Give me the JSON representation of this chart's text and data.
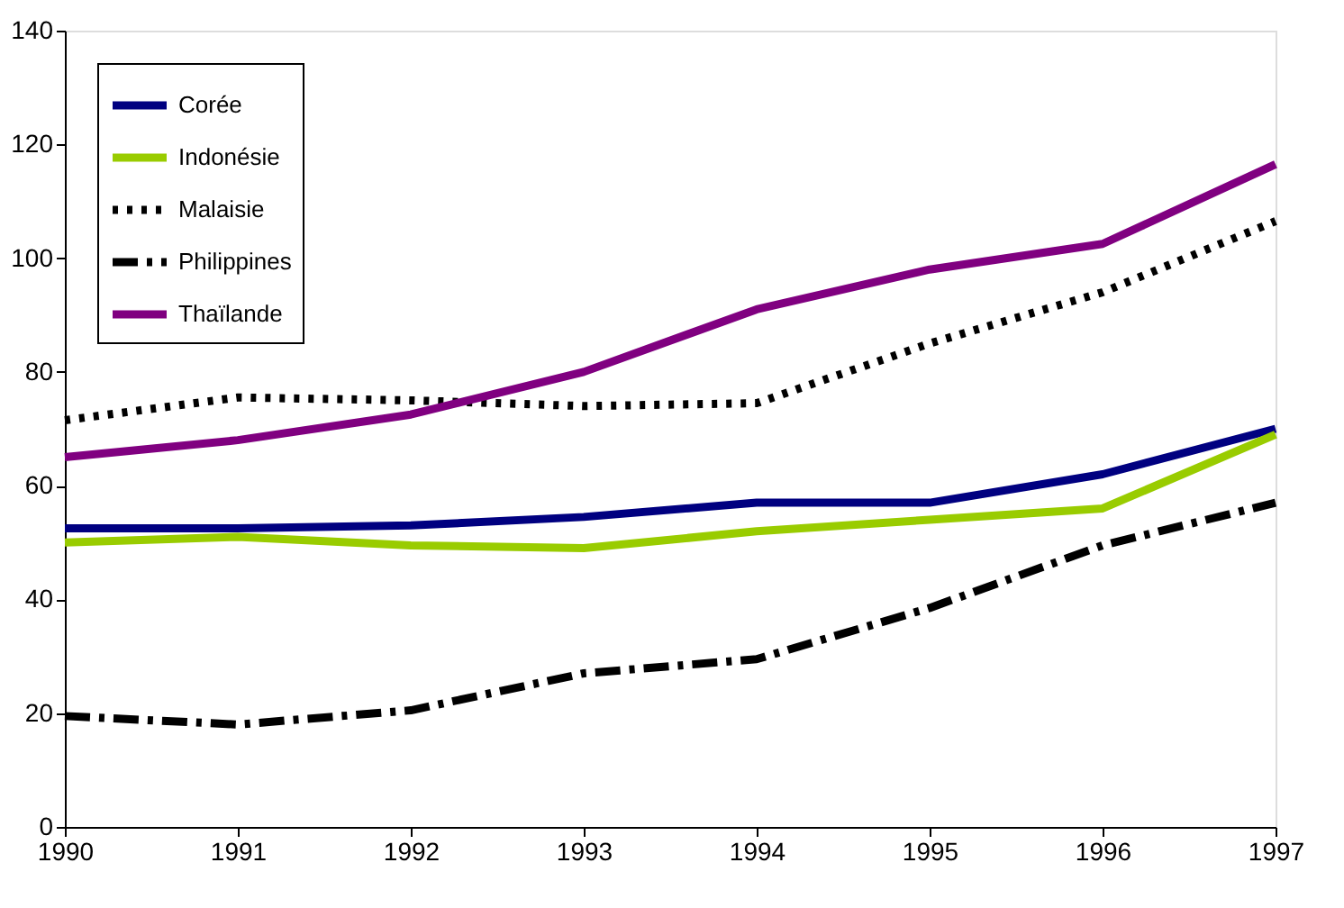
{
  "chart_data": {
    "type": "line",
    "x": [
      1990,
      1991,
      1992,
      1993,
      1994,
      1995,
      1996,
      1997
    ],
    "series": [
      {
        "name": "Corée",
        "color": "#000080",
        "line_style": "solid",
        "values": [
          52.5,
          52.5,
          53,
          54.5,
          57,
          57,
          62,
          70
        ]
      },
      {
        "name": "Indonésie",
        "color": "#99cc00",
        "line_style": "solid",
        "values": [
          50,
          51,
          49.5,
          49,
          52,
          54,
          56,
          69
        ]
      },
      {
        "name": "Malaisie",
        "color": "#000000",
        "line_style": "dotted",
        "values": [
          71.5,
          75.5,
          75,
          74,
          74.5,
          85,
          94,
          106.5
        ]
      },
      {
        "name": "Philippines",
        "color": "#000000",
        "line_style": "dashed",
        "values": [
          19.5,
          18,
          20.5,
          27,
          29.5,
          38.5,
          49.5,
          57
        ]
      },
      {
        "name": "Thaïlande",
        "color": "#800080",
        "line_style": "solid",
        "values": [
          65,
          68,
          72.5,
          80,
          91,
          98,
          102.5,
          116.5
        ]
      }
    ],
    "xlim": [
      1990,
      1997
    ],
    "xticks": [
      1990,
      1991,
      1992,
      1993,
      1994,
      1995,
      1996,
      1997
    ],
    "ylim": [
      0,
      140
    ],
    "yticks": [
      0,
      20,
      40,
      60,
      80,
      100,
      120,
      140
    ],
    "grid": false,
    "legend": "top left",
    "marker": "none"
  }
}
